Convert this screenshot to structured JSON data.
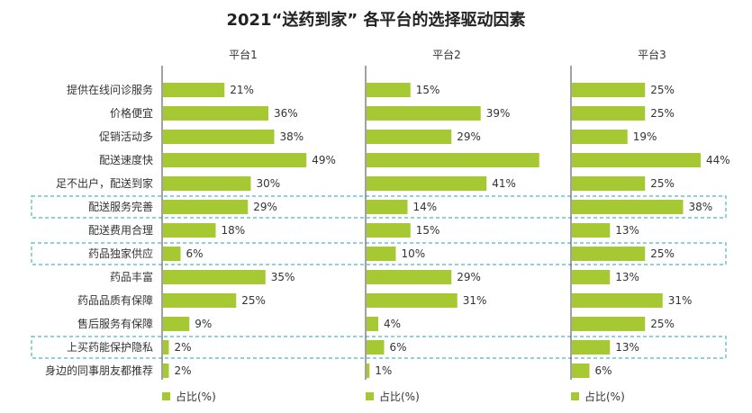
{
  "title": "2021“送药到家” 各平台的选择驱动因素",
  "colors": {
    "bar": "#a6c832",
    "axis": "#444444",
    "highlight_border": "#4bb8c8"
  },
  "chart_data": {
    "type": "bar",
    "orientation": "horizontal",
    "panels": [
      "平台1",
      "平台2",
      "平台3"
    ],
    "categories": [
      "提供在线问诊服务",
      "价格便宜",
      "促销活动多",
      "配送速度快",
      "足不出户，配送到家",
      "配送服务完善",
      "配送费用合理",
      "药品独家供应",
      "药品丰富",
      "药品品质有保障",
      "售后服务有保障",
      "上买药能保护隐私",
      "身边的同事朋友都推荐"
    ],
    "series": [
      {
        "panel": "平台1",
        "name": "占比(%)",
        "values": [
          21,
          36,
          38,
          49,
          30,
          29,
          18,
          6,
          35,
          25,
          9,
          2,
          2
        ]
      },
      {
        "panel": "平台2",
        "name": "占比(%)",
        "values": [
          15,
          39,
          29,
          59,
          41,
          14,
          15,
          10,
          29,
          31,
          4,
          6,
          1
        ]
      },
      {
        "panel": "平台3",
        "name": "占比(%)",
        "values": [
          25,
          25,
          19,
          44,
          25,
          38,
          13,
          25,
          13,
          31,
          25,
          13,
          6
        ]
      }
    ],
    "value_labels": [
      [
        "21%",
        "36%",
        "38%",
        "49%",
        "30%",
        "29%",
        "18%",
        "6%",
        "35%",
        "25%",
        "9%",
        "2%",
        "2%"
      ],
      [
        "15%",
        "39%",
        "29%",
        "",
        "41%",
        "14%",
        "15%",
        "10%",
        "29%",
        "31%",
        "4%",
        "6%",
        "1%"
      ],
      [
        "25%",
        "25%",
        "19%",
        "44%",
        "25%",
        "38%",
        "13%",
        "25%",
        "13%",
        "31%",
        "25%",
        "13%",
        "6%"
      ]
    ],
    "highlighted_categories": [
      "配送服务完善",
      "药品独家供应",
      "上买药能保护隐私"
    ],
    "legend": "bottom",
    "grid": false
  }
}
